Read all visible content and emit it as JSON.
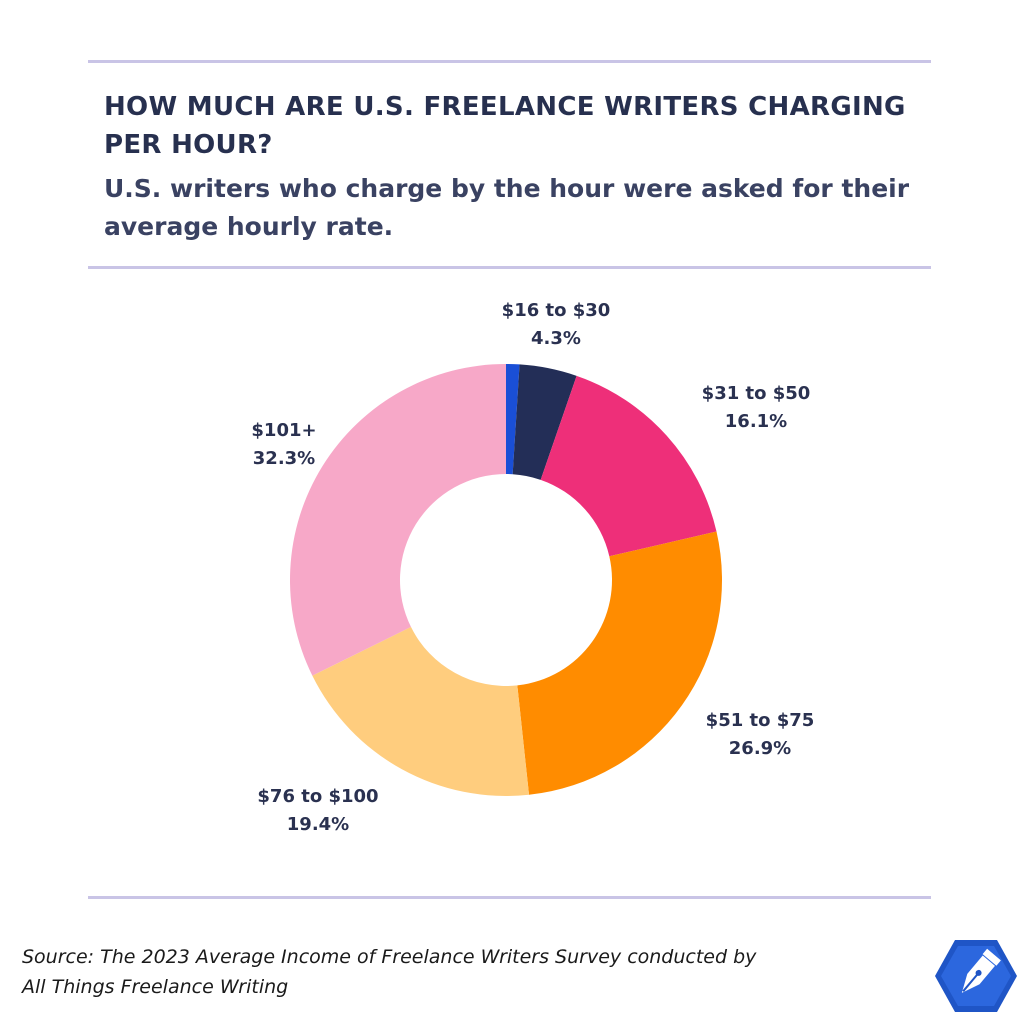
{
  "header": {
    "title": "HOW MUCH ARE U.S. FREELANCE WRITERS CHARGING PER HOUR?",
    "subtitle": "U.S. writers who charge by the hour were asked for their average hourly rate."
  },
  "footer": {
    "source_line1": "Source: The 2023 Average Income of Freelance Writers Survey conducted by",
    "source_line2": "All Things Freelance Writing"
  },
  "logo": {
    "icon": "pen-nib-hexagon-icon",
    "color": "#1f55c6"
  },
  "chart_data": {
    "type": "pie",
    "style": "donut",
    "start": "12 o'clock, clockwise",
    "labels_position": "outside",
    "slices": [
      {
        "label": "",
        "value": 1.0,
        "percent_label": "",
        "color": "#1a4fd6"
      },
      {
        "label": "$16 to $30",
        "value": 4.3,
        "percent_label": "4.3%",
        "color": "#232e57"
      },
      {
        "label": "$31 to $50",
        "value": 16.1,
        "percent_label": "16.1%",
        "color": "#ee2f79"
      },
      {
        "label": "$51 to $75",
        "value": 26.9,
        "percent_label": "26.9%",
        "color": "#ff8c00"
      },
      {
        "label": "$76 to $100",
        "value": 19.4,
        "percent_label": "19.4%",
        "color": "#ffcd7e"
      },
      {
        "label": "$101+",
        "value": 32.3,
        "percent_label": "32.3%",
        "color": "#f7a8c8"
      }
    ]
  }
}
